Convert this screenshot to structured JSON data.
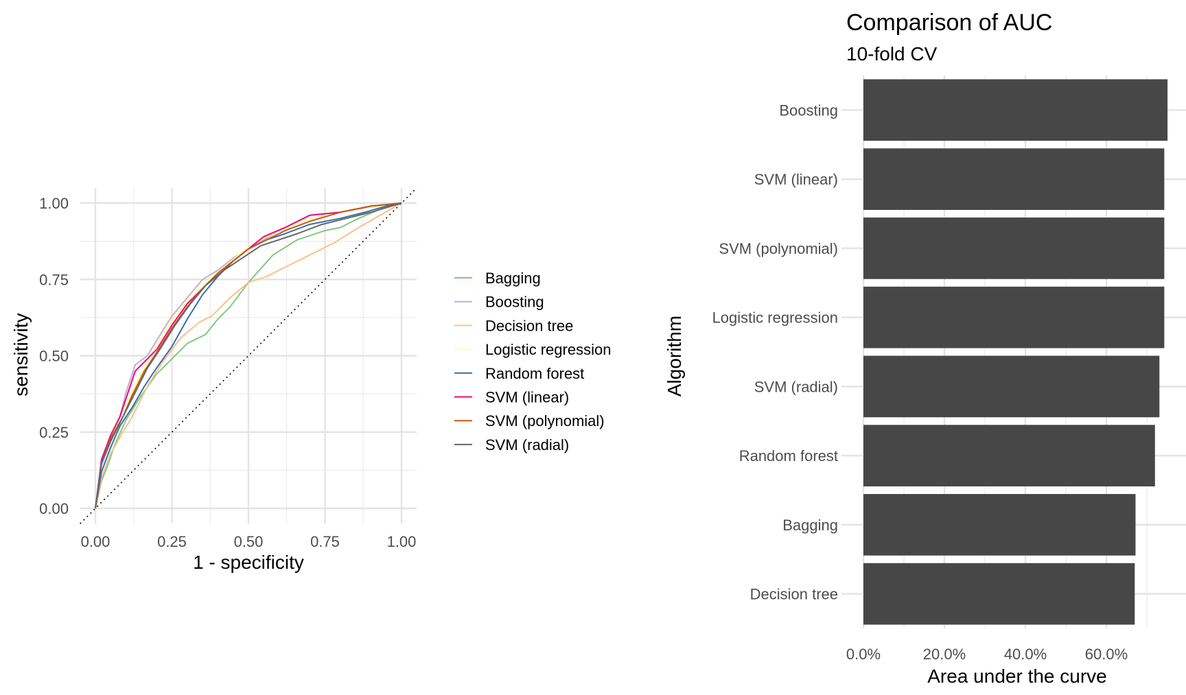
{
  "chart_data": [
    {
      "type": "line",
      "xlabel": "1 - specificity",
      "ylabel": "sensitivity",
      "xlim": [
        0,
        1
      ],
      "ylim": [
        0,
        1
      ],
      "x_ticks": [
        "0.00",
        "0.25",
        "0.50",
        "0.75",
        "1.00"
      ],
      "y_ticks": [
        "0.00",
        "0.25",
        "0.50",
        "0.75",
        "1.00"
      ],
      "grid": true,
      "reference_line": "diagonal dotted",
      "legend_position": "right",
      "series": [
        {
          "name": "Bagging",
          "color": "#7fc97f",
          "points": [
            [
              0,
              0
            ],
            [
              0.02,
              0.09
            ],
            [
              0.04,
              0.14
            ],
            [
              0.06,
              0.2
            ],
            [
              0.1,
              0.29
            ],
            [
              0.15,
              0.37
            ],
            [
              0.2,
              0.44
            ],
            [
              0.25,
              0.49
            ],
            [
              0.3,
              0.54
            ],
            [
              0.36,
              0.57
            ],
            [
              0.4,
              0.62
            ],
            [
              0.44,
              0.66
            ],
            [
              0.5,
              0.74
            ],
            [
              0.58,
              0.83
            ],
            [
              0.66,
              0.88
            ],
            [
              0.75,
              0.91
            ],
            [
              0.8,
              0.92
            ],
            [
              0.86,
              0.95
            ],
            [
              0.93,
              0.98
            ],
            [
              1,
              1
            ]
          ]
        },
        {
          "name": "Boosting",
          "color": "#beaed4",
          "points": [
            [
              0,
              0
            ],
            [
              0.02,
              0.14
            ],
            [
              0.05,
              0.22
            ],
            [
              0.08,
              0.3
            ],
            [
              0.1,
              0.38
            ],
            [
              0.13,
              0.47
            ],
            [
              0.17,
              0.5
            ],
            [
              0.2,
              0.55
            ],
            [
              0.25,
              0.63
            ],
            [
              0.3,
              0.69
            ],
            [
              0.35,
              0.75
            ],
            [
              0.4,
              0.78
            ],
            [
              0.45,
              0.82
            ],
            [
              0.5,
              0.85
            ],
            [
              0.55,
              0.88
            ],
            [
              0.6,
              0.91
            ],
            [
              0.68,
              0.94
            ],
            [
              0.75,
              0.96
            ],
            [
              0.85,
              0.98
            ],
            [
              0.93,
              0.99
            ],
            [
              1,
              1
            ]
          ]
        },
        {
          "name": "Decision tree",
          "color": "#fdc086",
          "points": [
            [
              0,
              0
            ],
            [
              0.02,
              0.1
            ],
            [
              0.05,
              0.18
            ],
            [
              0.09,
              0.25
            ],
            [
              0.12,
              0.3
            ],
            [
              0.17,
              0.4
            ],
            [
              0.22,
              0.48
            ],
            [
              0.28,
              0.56
            ],
            [
              0.34,
              0.61
            ],
            [
              0.38,
              0.63
            ],
            [
              0.44,
              0.69
            ],
            [
              0.5,
              0.74
            ],
            [
              0.56,
              0.76
            ],
            [
              0.62,
              0.79
            ],
            [
              0.7,
              0.83
            ],
            [
              0.78,
              0.87
            ],
            [
              0.86,
              0.92
            ],
            [
              0.93,
              0.96
            ],
            [
              1,
              1
            ]
          ]
        },
        {
          "name": "Logistic regression",
          "color": "#ffff99",
          "points": [
            [
              0,
              0
            ],
            [
              0.02,
              0.15
            ],
            [
              0.05,
              0.23
            ],
            [
              0.09,
              0.32
            ],
            [
              0.13,
              0.4
            ],
            [
              0.18,
              0.5
            ],
            [
              0.22,
              0.57
            ],
            [
              0.26,
              0.63
            ],
            [
              0.31,
              0.69
            ],
            [
              0.36,
              0.74
            ],
            [
              0.42,
              0.79
            ],
            [
              0.48,
              0.84
            ],
            [
              0.54,
              0.88
            ],
            [
              0.6,
              0.91
            ],
            [
              0.68,
              0.94
            ],
            [
              0.75,
              0.96
            ],
            [
              0.84,
              0.98
            ],
            [
              0.93,
              0.99
            ],
            [
              1,
              1
            ]
          ]
        },
        {
          "name": "Random forest",
          "color": "#386cb0",
          "points": [
            [
              0,
              0
            ],
            [
              0.02,
              0.12
            ],
            [
              0.05,
              0.2
            ],
            [
              0.08,
              0.27
            ],
            [
              0.12,
              0.33
            ],
            [
              0.16,
              0.4
            ],
            [
              0.2,
              0.46
            ],
            [
              0.25,
              0.53
            ],
            [
              0.3,
              0.62
            ],
            [
              0.35,
              0.7
            ],
            [
              0.4,
              0.76
            ],
            [
              0.45,
              0.81
            ],
            [
              0.5,
              0.85
            ],
            [
              0.56,
              0.88
            ],
            [
              0.62,
              0.9
            ],
            [
              0.7,
              0.93
            ],
            [
              0.8,
              0.95
            ],
            [
              0.88,
              0.97
            ],
            [
              0.95,
              0.99
            ],
            [
              1,
              1
            ]
          ]
        },
        {
          "name": "SVM (linear)",
          "color": "#f0027f",
          "points": [
            [
              0,
              0
            ],
            [
              0.02,
              0.16
            ],
            [
              0.05,
              0.24
            ],
            [
              0.08,
              0.3
            ],
            [
              0.1,
              0.36
            ],
            [
              0.13,
              0.45
            ],
            [
              0.17,
              0.49
            ],
            [
              0.2,
              0.52
            ],
            [
              0.25,
              0.6
            ],
            [
              0.3,
              0.67
            ],
            [
              0.35,
              0.72
            ],
            [
              0.4,
              0.77
            ],
            [
              0.45,
              0.81
            ],
            [
              0.5,
              0.85
            ],
            [
              0.55,
              0.89
            ],
            [
              0.62,
              0.92
            ],
            [
              0.7,
              0.96
            ],
            [
              0.8,
              0.97
            ],
            [
              0.9,
              0.99
            ],
            [
              1,
              1
            ]
          ]
        },
        {
          "name": "SVM (polynomial)",
          "color": "#bf5b17",
          "points": [
            [
              0,
              0
            ],
            [
              0.02,
              0.15
            ],
            [
              0.05,
              0.23
            ],
            [
              0.09,
              0.3
            ],
            [
              0.12,
              0.37
            ],
            [
              0.16,
              0.45
            ],
            [
              0.2,
              0.51
            ],
            [
              0.25,
              0.59
            ],
            [
              0.3,
              0.66
            ],
            [
              0.35,
              0.72
            ],
            [
              0.4,
              0.77
            ],
            [
              0.45,
              0.81
            ],
            [
              0.5,
              0.85
            ],
            [
              0.56,
              0.88
            ],
            [
              0.62,
              0.91
            ],
            [
              0.7,
              0.94
            ],
            [
              0.8,
              0.97
            ],
            [
              0.9,
              0.99
            ],
            [
              1,
              1
            ]
          ]
        },
        {
          "name": "SVM (radial)",
          "color": "#666666",
          "points": [
            [
              0,
              0
            ],
            [
              0.02,
              0.15
            ],
            [
              0.05,
              0.22
            ],
            [
              0.09,
              0.3
            ],
            [
              0.13,
              0.38
            ],
            [
              0.17,
              0.46
            ],
            [
              0.21,
              0.52
            ],
            [
              0.26,
              0.6
            ],
            [
              0.31,
              0.67
            ],
            [
              0.36,
              0.73
            ],
            [
              0.42,
              0.78
            ],
            [
              0.48,
              0.82
            ],
            [
              0.54,
              0.86
            ],
            [
              0.6,
              0.88
            ],
            [
              0.66,
              0.9
            ],
            [
              0.74,
              0.93
            ],
            [
              0.82,
              0.95
            ],
            [
              0.9,
              0.97
            ],
            [
              1,
              1
            ]
          ]
        }
      ]
    },
    {
      "type": "bar",
      "orientation": "horizontal",
      "title": "Comparison of AUC",
      "subtitle": "10-fold CV",
      "xlabel": "Area under the curve",
      "ylabel": "Algorithm",
      "x_ticks": [
        "0.0%",
        "20.0%",
        "40.0%",
        "60.0%"
      ],
      "xlim": [
        0,
        0.8
      ],
      "bar_color": "#474747",
      "categories": [
        "Boosting",
        "SVM (linear)",
        "SVM (polynomial)",
        "Logistic regression",
        "SVM (radial)",
        "Random forest",
        "Bagging",
        "Decision tree"
      ],
      "values": [
        0.751,
        0.743,
        0.743,
        0.743,
        0.731,
        0.72,
        0.672,
        0.67
      ]
    }
  ]
}
